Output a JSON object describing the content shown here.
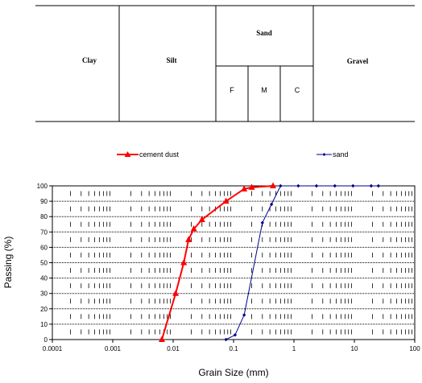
{
  "classification": {
    "clay": "Clay",
    "silt": "Silt",
    "sand": "Sand",
    "gravel": "Gravel",
    "sand_fine": "F",
    "sand_medium": "M",
    "sand_coarse": "C"
  },
  "legend": {
    "series1": "cement dust",
    "series2": "sand"
  },
  "colors": {
    "cement_dust": "#ff0000",
    "sand": "#00008b"
  },
  "chart_data": {
    "type": "line",
    "xscale": "log",
    "xlim": [
      0.0001,
      100
    ],
    "ylim": [
      0,
      100
    ],
    "xlabel": "Grain Size (mm)",
    "ylabel": "Passing (%)",
    "xticks": [
      0.0001,
      0.001,
      0.01,
      0.1,
      1,
      10,
      100
    ],
    "xtick_labels": [
      "0.0001",
      "0.001",
      "0.01",
      "0.1",
      "1",
      "10",
      "100"
    ],
    "yticks": [
      0,
      10,
      20,
      30,
      40,
      50,
      60,
      70,
      80,
      90,
      100
    ],
    "ytick_labels": [
      "0",
      "10",
      "20",
      "30",
      "40",
      "50",
      "60",
      "70",
      "80",
      "90",
      "100"
    ],
    "grid": true,
    "legend_position": "top",
    "series": [
      {
        "name": "cement dust",
        "x": [
          0.0065,
          0.011,
          0.015,
          0.018,
          0.022,
          0.03,
          0.075,
          0.15,
          0.2,
          0.45
        ],
        "y": [
          0,
          30,
          50,
          65,
          72,
          78,
          90,
          98,
          99,
          100
        ]
      },
      {
        "name": "sand",
        "x": [
          0.075,
          0.106,
          0.15,
          0.3,
          0.425,
          0.6,
          1.18,
          2.36,
          4.75,
          9.5,
          19,
          25
        ],
        "y": [
          0,
          3,
          16,
          76,
          88,
          100,
          100,
          100,
          100,
          100,
          100,
          100
        ]
      }
    ]
  }
}
